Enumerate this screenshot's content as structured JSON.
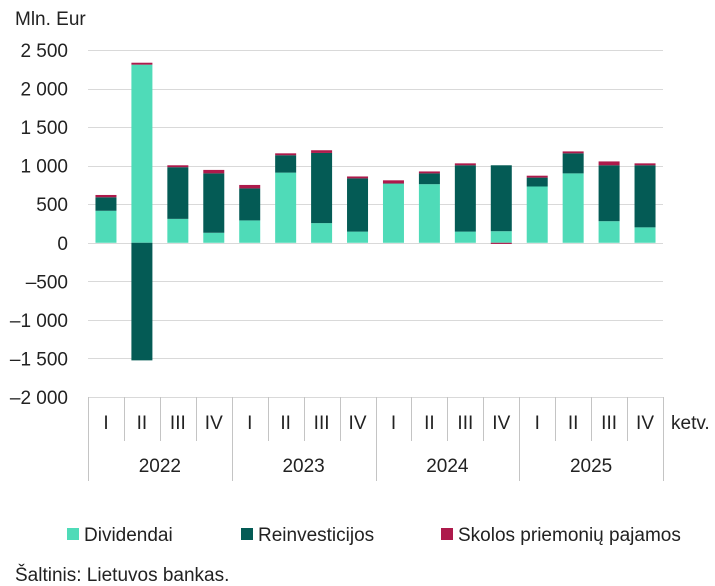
{
  "chart_data": {
    "type": "bar",
    "stacked": true,
    "ylabel": "Mln. Eur",
    "xlabel": "ketv.",
    "ylim": [
      -2000,
      2500
    ],
    "yticks": [
      2500,
      2000,
      1500,
      1000,
      500,
      0,
      -500,
      -1000,
      -1500,
      -2000
    ],
    "ytick_labels": [
      "2 500",
      "2 000",
      "1 500",
      "1 000",
      "500",
      "0",
      "–500",
      "–1 000",
      "–1 500",
      "–2 000"
    ],
    "categories": [
      "I",
      "II",
      "III",
      "IV",
      "I",
      "II",
      "III",
      "IV",
      "I",
      "II",
      "III",
      "IV",
      "I",
      "II",
      "III",
      "IV"
    ],
    "category_groups": [
      "2022",
      "2023",
      "2024",
      "2025"
    ],
    "series": [
      {
        "name": "Dividendai",
        "color": "#4fdbb8",
        "values": [
          415,
          2310,
          310,
          130,
          290,
          910,
          255,
          145,
          765,
          760,
          145,
          150,
          730,
          900,
          280,
          200
        ]
      },
      {
        "name": "Reinvesticijos",
        "color": "#045b55",
        "values": [
          175,
          -1525,
          670,
          770,
          415,
          225,
          910,
          690,
          5,
          140,
          860,
          855,
          115,
          260,
          725,
          805
        ]
      },
      {
        "name": "Skolos priemonių pajamos",
        "color": "#ad1a4b",
        "values": [
          30,
          25,
          25,
          45,
          45,
          25,
          35,
          25,
          40,
          25,
          25,
          -15,
          25,
          25,
          50,
          25
        ]
      }
    ],
    "grid": true,
    "legend_position": "bottom"
  },
  "footer": {
    "source": "Šaltinis: Lietuvos bankas."
  }
}
